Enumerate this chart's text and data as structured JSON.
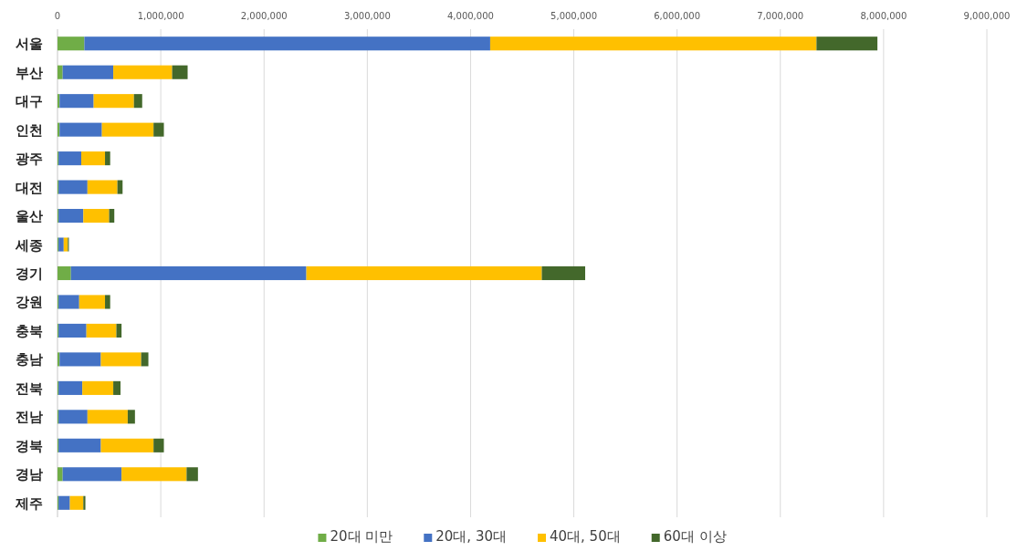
{
  "chart_data": {
    "type": "bar",
    "orientation": "horizontal",
    "stacked": true,
    "categories": [
      "서울",
      "부산",
      "대구",
      "인천",
      "광주",
      "대전",
      "울산",
      "세종",
      "경기",
      "강원",
      "충북",
      "충남",
      "전북",
      "전남",
      "경북",
      "경남",
      "제주"
    ],
    "series": [
      {
        "name": "20대 미만",
        "color": "#70ad47",
        "values": [
          260000,
          50000,
          20000,
          20000,
          10000,
          10000,
          10000,
          10000,
          130000,
          10000,
          10000,
          20000,
          10000,
          10000,
          10000,
          50000,
          10000
        ]
      },
      {
        "name": "20대, 30대",
        "color": "#4472c4",
        "values": [
          3930000,
          490000,
          330000,
          410000,
          220000,
          280000,
          240000,
          50000,
          2280000,
          200000,
          270000,
          400000,
          230000,
          280000,
          410000,
          570000,
          110000
        ]
      },
      {
        "name": "40대, 50대",
        "color": "#ffc000",
        "values": [
          3160000,
          570000,
          390000,
          500000,
          230000,
          290000,
          250000,
          40000,
          2280000,
          250000,
          290000,
          390000,
          300000,
          390000,
          510000,
          630000,
          130000
        ]
      },
      {
        "name": "60대 이상",
        "color": "#43682b",
        "values": [
          590000,
          150000,
          80000,
          100000,
          50000,
          50000,
          50000,
          10000,
          420000,
          50000,
          50000,
          70000,
          70000,
          70000,
          100000,
          110000,
          20000
        ]
      }
    ],
    "xlim": [
      0,
      9000000
    ],
    "xticks": [
      0,
      {
        "value": 1000000,
        "label": "1,000,000"
      },
      {
        "value": 2000000,
        "label": "2,000,000"
      },
      {
        "value": 3000000,
        "label": "3,000,000"
      },
      {
        "value": 4000000,
        "label": "4,000,000"
      },
      {
        "value": 5000000,
        "label": "5,000,000"
      },
      {
        "value": 6000000,
        "label": "6,000,000"
      },
      {
        "value": 7000000,
        "label": "7,000,000"
      },
      {
        "value": 8000000,
        "label": "8,000,000"
      },
      {
        "value": 9000000,
        "label": "9,000,000"
      }
    ],
    "grid": "x",
    "legend": "bottom"
  }
}
